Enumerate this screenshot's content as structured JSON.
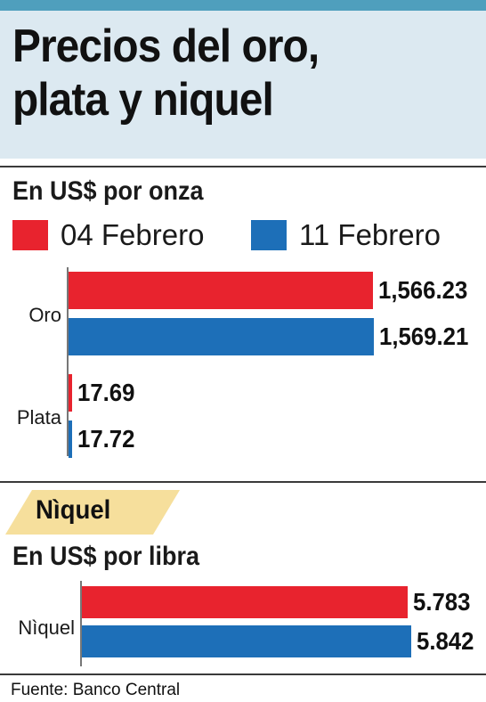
{
  "header": {
    "title_line1": "Precios del oro,",
    "title_line2": "plata y niquel"
  },
  "gold_silver": {
    "unit_label": "En US$ por onza"
  },
  "legend": [
    {
      "label": "04 Febrero",
      "color": "#e8232e"
    },
    {
      "label": "11 Febrero",
      "color": "#1d6fb8"
    }
  ],
  "nickel": {
    "tab_label": "Nìquel",
    "unit_label": "En US$ por libra"
  },
  "footer": {
    "source": "Fuente: Banco Central"
  },
  "chart_data": [
    {
      "type": "bar",
      "orientation": "horizontal",
      "title": "",
      "categories": [
        "Oro",
        "Plata"
      ],
      "series": [
        {
          "name": "04 Febrero",
          "values": [
            1566.23,
            17.69
          ],
          "labels": [
            "1,566.23",
            "17.69"
          ]
        },
        {
          "name": "11 Febrero",
          "values": [
            1569.21,
            17.72
          ],
          "labels": [
            "1,569.21",
            "17.72"
          ]
        }
      ],
      "xlabel": "",
      "ylabel": "",
      "grid": false
    },
    {
      "type": "bar",
      "orientation": "horizontal",
      "title": "",
      "categories": [
        "Nìquel"
      ],
      "series": [
        {
          "name": "04 Febrero",
          "values": [
            5.783
          ],
          "labels": [
            "5.783"
          ]
        },
        {
          "name": "11 Febrero",
          "values": [
            5.842
          ],
          "labels": [
            "5.842"
          ]
        }
      ],
      "xlabel": "",
      "ylabel": "",
      "grid": false
    }
  ]
}
